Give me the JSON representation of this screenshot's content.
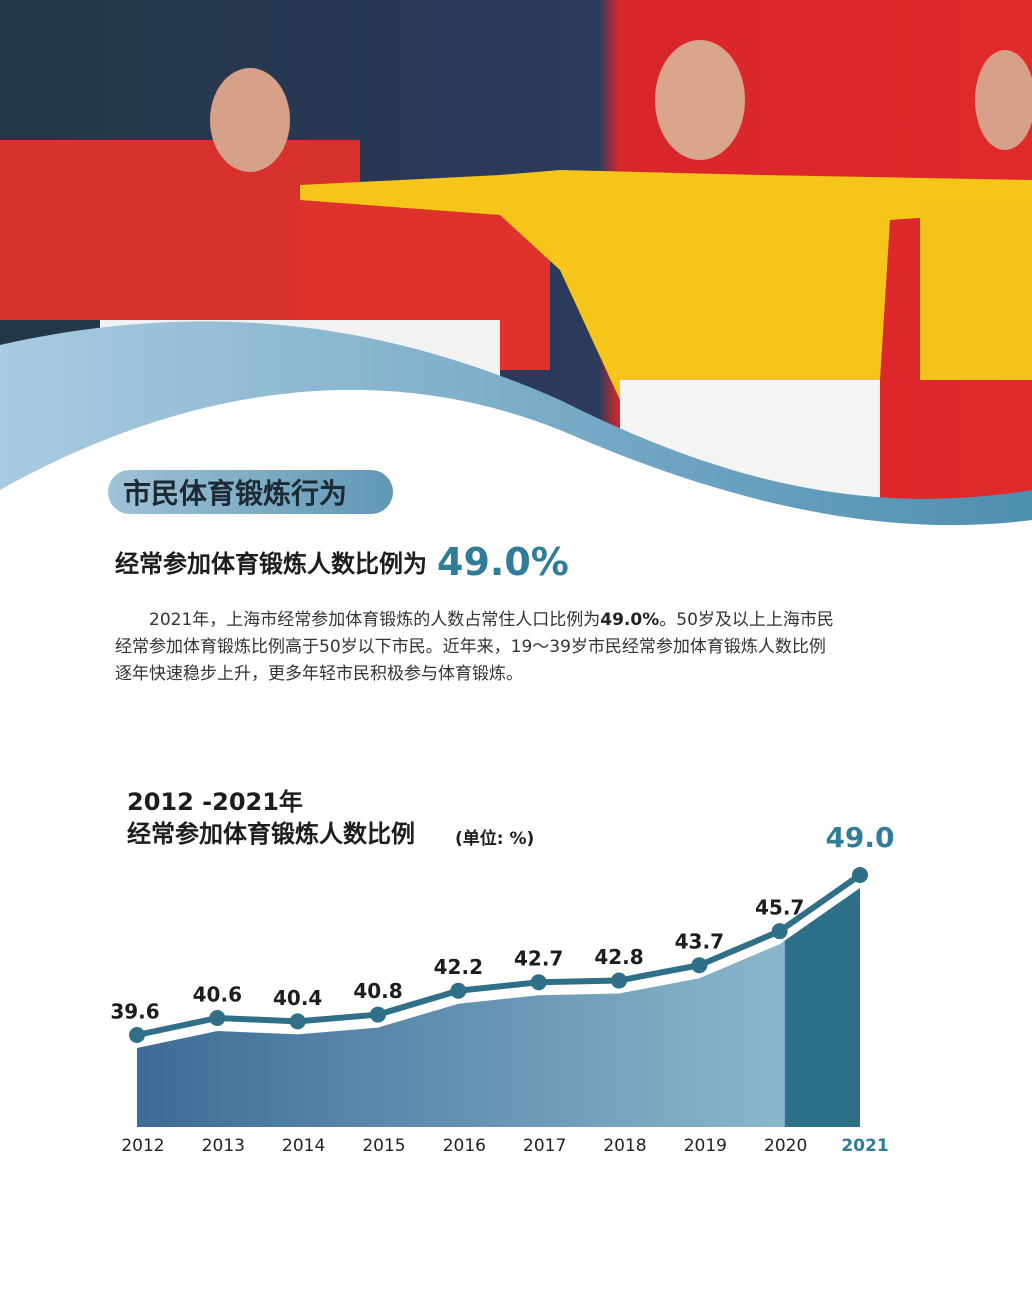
{
  "section_title": "市民体育锻炼行为",
  "headline": {
    "text": "经常参加体育锻炼人数比例为",
    "value": "49.0%"
  },
  "paragraph": {
    "before": "2021年，上海市经常参加体育锻炼的人数占常住人口比例为",
    "bold": "49.0%",
    "after": "。50岁及以上上海市民经常参加体育锻炼比例高于50岁以下市民。近年来，19～39岁市民经常参加体育锻炼人数比例逐年快速稳步上升，更多年轻市民积极参与体育锻炼。"
  },
  "chart_data": {
    "type": "line",
    "title": "2012 -2021年",
    "subtitle": "经常参加体育锻炼人数比例",
    "unit": "(单位: %)",
    "categories": [
      "2012",
      "2013",
      "2014",
      "2015",
      "2016",
      "2017",
      "2018",
      "2019",
      "2020",
      "2021"
    ],
    "values": [
      39.6,
      40.6,
      40.4,
      40.8,
      42.2,
      42.7,
      42.8,
      43.7,
      45.7,
      49.0
    ],
    "value_labels": [
      "39.6",
      "40.6",
      "40.4",
      "40.8",
      "42.2",
      "42.7",
      "42.8",
      "43.7",
      "45.7",
      "49.0"
    ],
    "color": "#2f6f88"
  }
}
